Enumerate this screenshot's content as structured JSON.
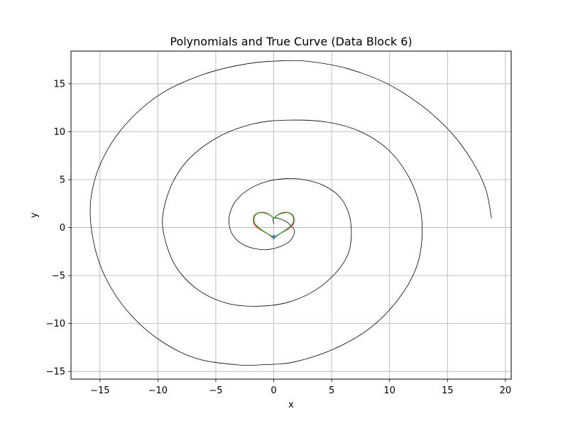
{
  "chart_data": {
    "type": "line",
    "title": "Polynomials and True Curve (Data Block 6)",
    "xlabel": "x",
    "ylabel": "y",
    "xlim": [
      -17.5,
      20.5
    ],
    "ylim": [
      -15.8,
      18.4
    ],
    "xticks": [
      -15,
      -10,
      -5,
      0,
      5,
      10,
      15,
      20
    ],
    "xtick_labels": [
      "−15",
      "−10",
      "−5",
      "0",
      "5",
      "10",
      "15",
      "20"
    ],
    "yticks": [
      -15,
      -10,
      -5,
      0,
      5,
      10,
      15
    ],
    "ytick_labels": [
      "−15",
      "−10",
      "−5",
      "0",
      "5",
      "10",
      "15"
    ],
    "grid": true,
    "series": [
      {
        "color": "#000000",
        "points": [
          [
            18.8,
            1.0
          ],
          [
            18.3,
            4.0
          ],
          [
            17.2,
            6.8
          ],
          [
            15.4,
            9.8
          ],
          [
            12.9,
            12.6
          ],
          [
            9.8,
            15.0
          ],
          [
            6.3,
            16.6
          ],
          [
            3.2,
            17.3
          ],
          [
            1.0,
            17.4
          ],
          [
            -2.2,
            17.1
          ],
          [
            -6.0,
            16.0
          ],
          [
            -9.8,
            13.9
          ],
          [
            -12.9,
            10.6
          ],
          [
            -14.9,
            6.8
          ],
          [
            -15.8,
            2.8
          ],
          [
            -15.6,
            -1.2
          ],
          [
            -14.6,
            -5.0
          ],
          [
            -12.7,
            -8.6
          ],
          [
            -10.0,
            -11.6
          ],
          [
            -6.8,
            -13.6
          ],
          [
            -3.2,
            -14.3
          ],
          [
            -1.0,
            -14.3
          ],
          [
            1.8,
            -14.0
          ],
          [
            5.3,
            -12.6
          ],
          [
            8.4,
            -10.4
          ],
          [
            10.8,
            -7.4
          ],
          [
            12.3,
            -4.2
          ],
          [
            12.8,
            -1.0
          ],
          [
            12.6,
            2.3
          ],
          [
            11.6,
            5.4
          ],
          [
            9.9,
            8.1
          ],
          [
            7.5,
            10.0
          ],
          [
            4.6,
            11.0
          ],
          [
            1.0,
            11.2
          ],
          [
            -1.8,
            10.8
          ],
          [
            -4.7,
            9.5
          ],
          [
            -7.2,
            7.3
          ],
          [
            -8.8,
            4.5
          ],
          [
            -9.6,
            1.0
          ],
          [
            -9.2,
            -2.0
          ],
          [
            -8.2,
            -4.5
          ],
          [
            -6.4,
            -6.6
          ],
          [
            -4.0,
            -7.9
          ],
          [
            -1.4,
            -8.2
          ],
          [
            1.2,
            -7.8
          ],
          [
            3.5,
            -6.6
          ],
          [
            5.3,
            -4.8
          ],
          [
            6.4,
            -2.8
          ],
          [
            6.7,
            -0.8
          ],
          [
            6.5,
            1.4
          ],
          [
            5.7,
            3.2
          ],
          [
            4.3,
            4.4
          ],
          [
            2.6,
            5.0
          ],
          [
            1.0,
            5.1
          ],
          [
            -0.6,
            4.8
          ],
          [
            -2.0,
            4.1
          ],
          [
            -3.2,
            2.9
          ],
          [
            -3.8,
            1.4
          ],
          [
            -3.8,
            0.0
          ],
          [
            -3.4,
            -1.0
          ],
          [
            -2.6,
            -1.8
          ],
          [
            -1.6,
            -2.2
          ],
          [
            -0.6,
            -2.3
          ],
          [
            0.5,
            -2.0
          ],
          [
            1.4,
            -1.4
          ],
          [
            1.8,
            -0.4
          ],
          [
            1.4,
            0.3
          ],
          [
            0.8,
            0.8
          ],
          [
            0.0,
            1.0
          ],
          [
            0.0,
            0.4
          ]
        ]
      },
      {
        "color": "#d62728",
        "points": [
          [
            0.0,
            -1.1
          ],
          [
            -0.6,
            -0.6
          ],
          [
            -1.3,
            -0.1
          ],
          [
            -1.7,
            0.4
          ],
          [
            -1.75,
            0.8
          ],
          [
            -1.7,
            1.2
          ],
          [
            -1.4,
            1.5
          ],
          [
            -1.0,
            1.6
          ],
          [
            -0.6,
            1.5
          ],
          [
            -0.25,
            1.25
          ],
          [
            0.0,
            1.0
          ],
          [
            0.25,
            1.25
          ],
          [
            0.6,
            1.5
          ],
          [
            1.0,
            1.6
          ],
          [
            1.4,
            1.5
          ],
          [
            1.7,
            1.2
          ],
          [
            1.75,
            0.8
          ],
          [
            1.7,
            0.4
          ],
          [
            1.3,
            -0.1
          ],
          [
            0.6,
            -0.6
          ],
          [
            0.0,
            -1.1
          ]
        ]
      },
      {
        "color": "#2ca02c",
        "points": [
          [
            0.0,
            -1.0
          ],
          [
            -0.65,
            -0.55
          ],
          [
            -1.25,
            -0.05
          ],
          [
            -1.65,
            0.45
          ],
          [
            -1.7,
            0.85
          ],
          [
            -1.65,
            1.2
          ],
          [
            -1.35,
            1.5
          ],
          [
            -1.0,
            1.55
          ],
          [
            -0.6,
            1.45
          ],
          [
            -0.2,
            1.2
          ],
          [
            0.0,
            0.95
          ],
          [
            0.2,
            1.2
          ],
          [
            0.6,
            1.45
          ],
          [
            1.0,
            1.55
          ],
          [
            1.35,
            1.5
          ],
          [
            1.65,
            1.2
          ],
          [
            1.7,
            0.85
          ],
          [
            1.65,
            0.45
          ],
          [
            1.25,
            -0.05
          ],
          [
            0.65,
            -0.55
          ],
          [
            0.0,
            -1.0
          ]
        ]
      },
      {
        "color": "#1f77b4",
        "points": [
          [
            0.0,
            -1.2
          ],
          [
            -0.1,
            -0.95
          ],
          [
            0.0,
            -0.8
          ],
          [
            0.1,
            -0.95
          ],
          [
            0.0,
            -1.2
          ]
        ]
      }
    ]
  }
}
